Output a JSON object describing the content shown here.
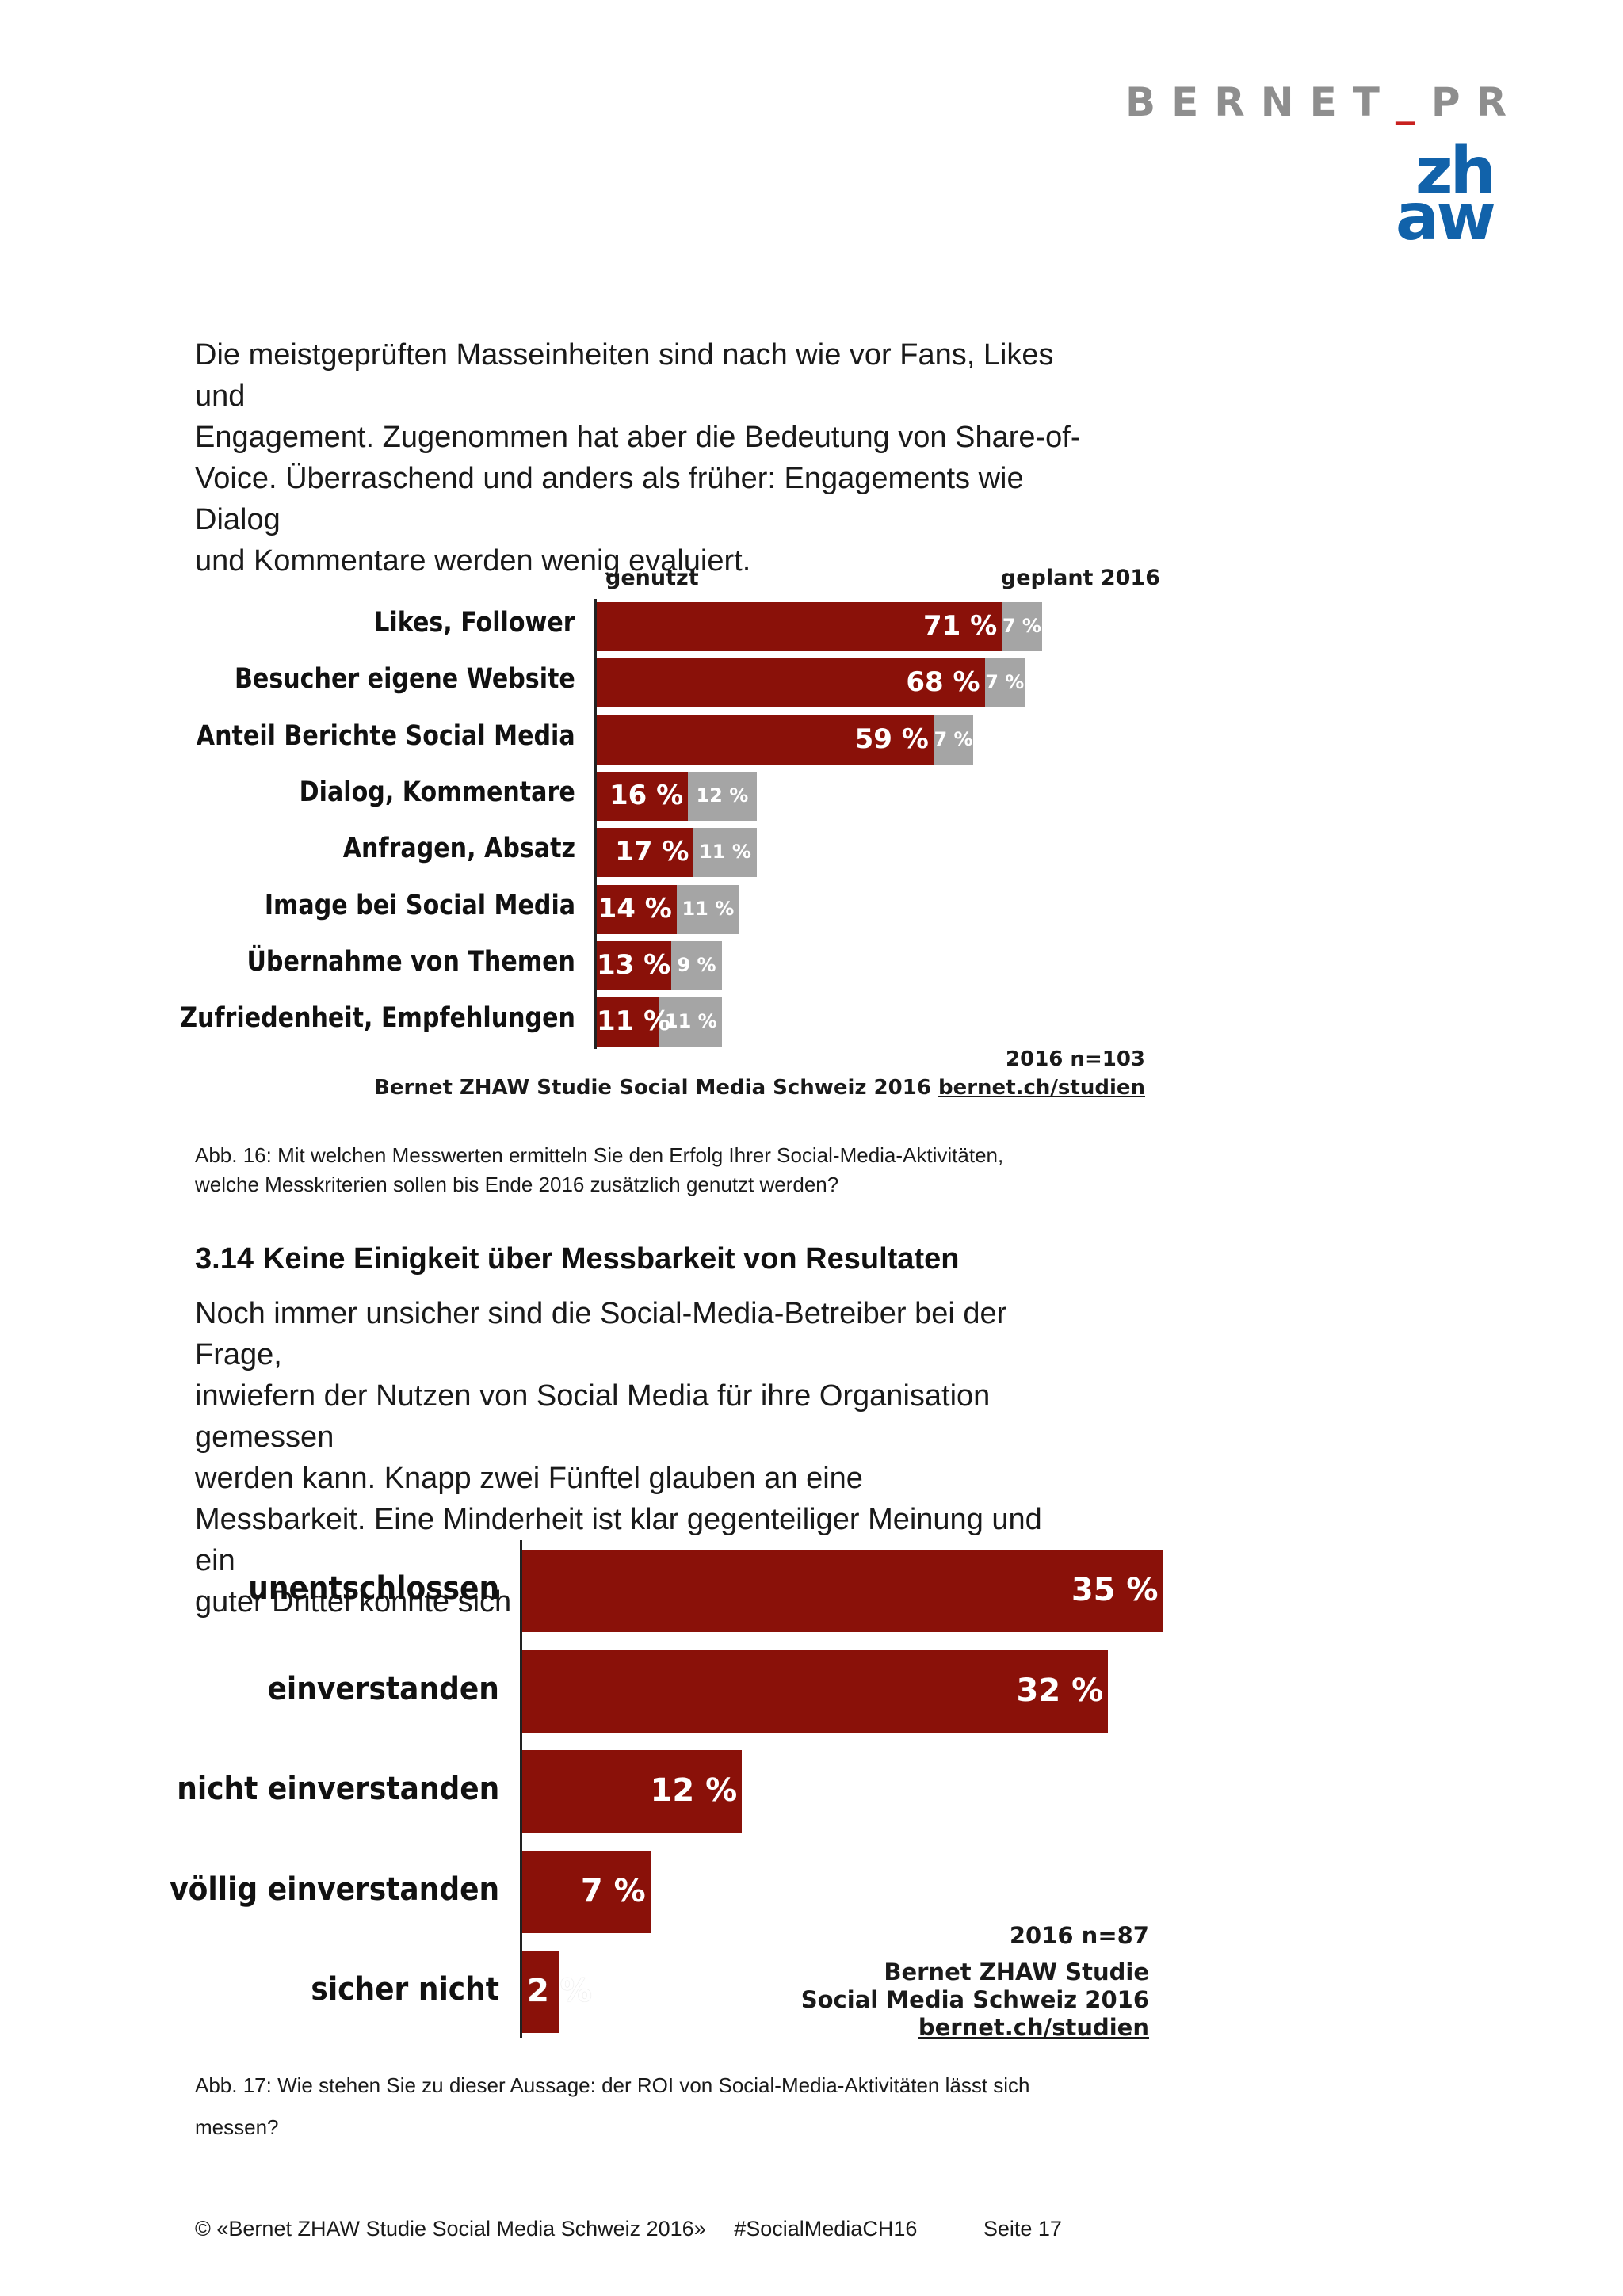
{
  "header": {
    "logo_bernet_left": "BERNET",
    "logo_bernet_sep": "_",
    "logo_bernet_right": "PR",
    "logo_zhaw_top": "zh",
    "logo_zhaw_bottom": "aw"
  },
  "intro_paragraph": [
    "Die meistgeprüften Masseinheiten sind nach wie vor Fans, Likes und",
    "Engagement. Zugenommen hat aber die Bedeutung von Share-of-",
    "Voice. Überraschend und anders als früher: Engagements wie Dialog",
    "und Kommentare werden wenig evaluiert."
  ],
  "chart1": {
    "header_used": "genutzt",
    "header_planned": "geplant 2016",
    "sample": "2016 n=103",
    "source_prefix": "Bernet ZHAW Studie Social Media Schweiz 2016 ",
    "source_link": "bernet.ch/studien",
    "caption": [
      "Abb. 16: Mit welchen Messwerten ermitteln Sie den Erfolg Ihrer Social-Media-Aktivitäten,",
      "welche Messkriterien sollen bis Ende 2016 zusätzlich genutzt werden?"
    ]
  },
  "chart_data": [
    {
      "type": "bar",
      "orientation": "horizontal",
      "stacked": true,
      "categories": [
        "Likes, Follower",
        "Besucher eigene Website",
        "Anteil Berichte Social Media",
        "Dialog, Kommentare",
        "Anfragen, Absatz",
        "Image bei Social Media",
        "Übernahme von Themen",
        "Zufriedenheit, Empfehlungen"
      ],
      "series": [
        {
          "name": "genutzt",
          "color": "#8a1109",
          "values": [
            71,
            68,
            59,
            16,
            17,
            14,
            13,
            11
          ],
          "labels": [
            "71 %",
            "68 %",
            "59 %",
            "16 %",
            "17 %",
            "14 %",
            "13 %",
            "11 %"
          ]
        },
        {
          "name": "geplant 2016",
          "color": "#a5a5a5",
          "values": [
            7,
            7,
            7,
            12,
            11,
            11,
            9,
            11
          ],
          "labels": [
            "7 %",
            "7 %",
            "7 %",
            "12 %",
            "11 %",
            "11 %",
            "9 %",
            "11 %"
          ]
        }
      ]
    },
    {
      "type": "bar",
      "orientation": "horizontal",
      "categories": [
        "unentschlossen",
        "einverstanden",
        "nicht einverstanden",
        "völlig einverstanden",
        "sicher nicht"
      ],
      "series": [
        {
          "color": "#8a1109",
          "values": [
            35,
            32,
            12,
            7,
            2
          ],
          "labels": [
            "35 %",
            "32 %",
            "12 %",
            "7 %",
            "2 %"
          ]
        }
      ]
    }
  ],
  "section": {
    "number": "3.14",
    "title": "Keine Einigkeit über Messbarkeit von Resultaten",
    "paragraph": [
      "Noch immer unsicher sind die Social-Media-Betreiber bei der Frage,",
      "inwiefern der Nutzen von Social Media für ihre Organisation gemessen",
      "werden kann. Knapp zwei Fünftel glauben an eine",
      "Messbarkeit. Eine Minderheit ist klar gegenteiliger Meinung und ein",
      "guter Drittel konnte sich hierzu noch keine Meinung bilden."
    ]
  },
  "chart2": {
    "sample": "2016 n=87",
    "source_line1": "Bernet ZHAW Studie",
    "source_line2": "Social Media Schweiz 2016",
    "source_link": "bernet.ch/studien",
    "caption": [
      "Abb. 17: Wie stehen Sie zu dieser Aussage: der ROI von Social-Media-Aktivitäten lässt sich",
      "messen?"
    ]
  },
  "footer": {
    "copyright": "© «Bernet ZHAW Studie Social Media Schweiz 2016»",
    "hashtag": "#SocialMediaCH16",
    "page": "Seite 17"
  }
}
